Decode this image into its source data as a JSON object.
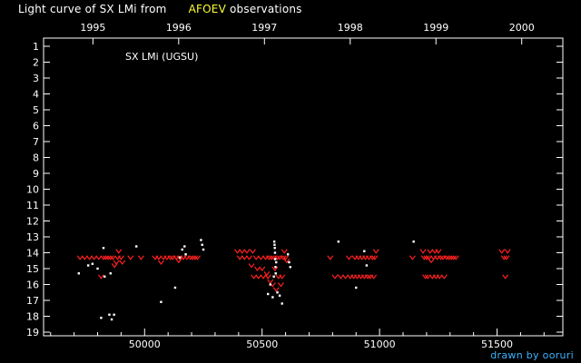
{
  "header": {
    "title_prefix": "Light curve of SX LMi from",
    "title_source": "AFOEV",
    "title_suffix": "observations",
    "credit": "drawn by ooruri"
  },
  "colors": {
    "background": "#000000",
    "visual_estimates": "#ff2020",
    "fainter_than": "#ffffff",
    "accent_text": "#ffff33",
    "credit_text": "#38b4ff"
  },
  "chart_data": {
    "type": "scatter",
    "title": "Light curve of SX LMi from AFOEV observations",
    "annotation": "SX LMi (UGSU)",
    "xlabel": "",
    "ylabel": "",
    "xlim": [
      49570,
      51780
    ],
    "ylim": [
      19,
      0.6
    ],
    "y_inverted": true,
    "grid": false,
    "x_ticks_bottom": [
      50000,
      50500,
      51000,
      51500
    ],
    "x_ticks_top": [
      {
        "label": "1995",
        "jd": 49780
      },
      {
        "label": "1996",
        "jd": 50145
      },
      {
        "label": "1997",
        "jd": 50510
      },
      {
        "label": "1998",
        "jd": 50875
      },
      {
        "label": "1999",
        "jd": 51240
      },
      {
        "label": "2000",
        "jd": 51605
      }
    ],
    "y_ticks": [
      1,
      2,
      3,
      4,
      5,
      6,
      7,
      8,
      9,
      10,
      11,
      12,
      13,
      14,
      15,
      16,
      17,
      18,
      19
    ],
    "series": [
      {
        "marker": "v",
        "color": "#ff2020",
        "points": [
          [
            49725,
            14.3
          ],
          [
            49745,
            14.3
          ],
          [
            49765,
            14.3
          ],
          [
            49785,
            14.3
          ],
          [
            49805,
            14.3
          ],
          [
            49815,
            15.5
          ],
          [
            49825,
            14.3
          ],
          [
            49835,
            14.3
          ],
          [
            49845,
            14.3
          ],
          [
            49855,
            14.3
          ],
          [
            49865,
            14.3
          ],
          [
            49872,
            14.8
          ],
          [
            49880,
            14.6
          ],
          [
            49885,
            14.3
          ],
          [
            49890,
            13.9
          ],
          [
            49900,
            14.3
          ],
          [
            49905,
            14.6
          ],
          [
            49940,
            14.3
          ],
          [
            49985,
            14.3
          ],
          [
            50045,
            14.3
          ],
          [
            50060,
            14.3
          ],
          [
            50070,
            14.6
          ],
          [
            50080,
            14.3
          ],
          [
            50095,
            14.3
          ],
          [
            50110,
            14.3
          ],
          [
            50120,
            14.3
          ],
          [
            50135,
            14.3
          ],
          [
            50145,
            14.5
          ],
          [
            50150,
            14.3
          ],
          [
            50165,
            14.3
          ],
          [
            50180,
            14.3
          ],
          [
            50195,
            14.3
          ],
          [
            50205,
            14.3
          ],
          [
            50215,
            14.3
          ],
          [
            50225,
            14.3
          ],
          [
            50395,
            13.9
          ],
          [
            50405,
            14.3
          ],
          [
            50415,
            13.9
          ],
          [
            50425,
            14.3
          ],
          [
            50435,
            13.9
          ],
          [
            50445,
            14.3
          ],
          [
            50455,
            14.8
          ],
          [
            50460,
            13.9
          ],
          [
            50465,
            15.5
          ],
          [
            50475,
            14.3
          ],
          [
            50480,
            15.0
          ],
          [
            50485,
            15.5
          ],
          [
            50495,
            14.3
          ],
          [
            50500,
            15.0
          ],
          [
            50505,
            15.5
          ],
          [
            50515,
            14.3
          ],
          [
            50520,
            15.3
          ],
          [
            50525,
            15.5
          ],
          [
            50530,
            14.3
          ],
          [
            50535,
            15.8
          ],
          [
            50540,
            14.3
          ],
          [
            50545,
            16.0
          ],
          [
            50550,
            14.3
          ],
          [
            50555,
            15.0
          ],
          [
            50560,
            16.3
          ],
          [
            50565,
            14.3
          ],
          [
            50570,
            15.5
          ],
          [
            50575,
            14.3
          ],
          [
            50580,
            16.0
          ],
          [
            50585,
            15.5
          ],
          [
            50590,
            14.3
          ],
          [
            50595,
            13.9
          ],
          [
            50600,
            14.3
          ],
          [
            50605,
            14.5
          ],
          [
            50790,
            14.3
          ],
          [
            50810,
            15.5
          ],
          [
            50835,
            15.5
          ],
          [
            50855,
            15.5
          ],
          [
            50870,
            14.3
          ],
          [
            50875,
            15.5
          ],
          [
            50890,
            15.5
          ],
          [
            50895,
            14.3
          ],
          [
            50905,
            15.5
          ],
          [
            50910,
            14.3
          ],
          [
            50920,
            15.5
          ],
          [
            50925,
            14.3
          ],
          [
            50935,
            15.5
          ],
          [
            50940,
            14.3
          ],
          [
            50950,
            15.5
          ],
          [
            50955,
            14.3
          ],
          [
            50960,
            15.5
          ],
          [
            50970,
            14.3
          ],
          [
            50975,
            15.5
          ],
          [
            50980,
            14.3
          ],
          [
            50985,
            13.9
          ],
          [
            51140,
            14.3
          ],
          [
            51185,
            13.9
          ],
          [
            51190,
            14.3
          ],
          [
            51195,
            15.5
          ],
          [
            51200,
            14.3
          ],
          [
            51205,
            15.5
          ],
          [
            51210,
            14.3
          ],
          [
            51215,
            13.9
          ],
          [
            51220,
            14.5
          ],
          [
            51225,
            15.5
          ],
          [
            51230,
            14.3
          ],
          [
            51235,
            13.9
          ],
          [
            51240,
            15.5
          ],
          [
            51245,
            14.3
          ],
          [
            51250,
            13.9
          ],
          [
            51255,
            15.5
          ],
          [
            51260,
            14.3
          ],
          [
            51270,
            14.3
          ],
          [
            51275,
            15.5
          ],
          [
            51285,
            14.3
          ],
          [
            51295,
            14.3
          ],
          [
            51305,
            14.3
          ],
          [
            51315,
            14.3
          ],
          [
            51325,
            14.3
          ],
          [
            51520,
            13.9
          ],
          [
            51530,
            14.3
          ],
          [
            51535,
            15.5
          ],
          [
            51540,
            14.3
          ],
          [
            51545,
            13.9
          ]
        ]
      },
      {
        "marker": "dot",
        "color": "#ffffff",
        "points": [
          [
            49720,
            15.3
          ],
          [
            49760,
            14.8
          ],
          [
            49778,
            14.7
          ],
          [
            49800,
            15.0
          ],
          [
            49815,
            18.1
          ],
          [
            49825,
            13.7
          ],
          [
            49830,
            15.5
          ],
          [
            49850,
            17.9
          ],
          [
            49855,
            15.3
          ],
          [
            49860,
            18.2
          ],
          [
            49870,
            17.9
          ],
          [
            49965,
            13.6
          ],
          [
            50070,
            17.1
          ],
          [
            50130,
            16.2
          ],
          [
            50150,
            14.3
          ],
          [
            50160,
            13.8
          ],
          [
            50170,
            13.6
          ],
          [
            50175,
            14.1
          ],
          [
            50240,
            13.2
          ],
          [
            50245,
            13.5
          ],
          [
            50250,
            13.8
          ],
          [
            50525,
            16.6
          ],
          [
            50535,
            16.0
          ],
          [
            50545,
            16.8
          ],
          [
            50550,
            15.5
          ],
          [
            50552,
            13.3
          ],
          [
            50553,
            13.5
          ],
          [
            50554,
            13.7
          ],
          [
            50555,
            14.0
          ],
          [
            50556,
            14.4
          ],
          [
            50557,
            14.9
          ],
          [
            50558,
            15.3
          ],
          [
            50560,
            14.6
          ],
          [
            50565,
            16.5
          ],
          [
            50575,
            16.7
          ],
          [
            50585,
            17.2
          ],
          [
            50610,
            14.1
          ],
          [
            50615,
            14.6
          ],
          [
            50620,
            14.9
          ],
          [
            50825,
            13.3
          ],
          [
            50900,
            16.2
          ],
          [
            50935,
            13.9
          ],
          [
            50945,
            14.8
          ],
          [
            51145,
            13.3
          ]
        ]
      }
    ]
  }
}
